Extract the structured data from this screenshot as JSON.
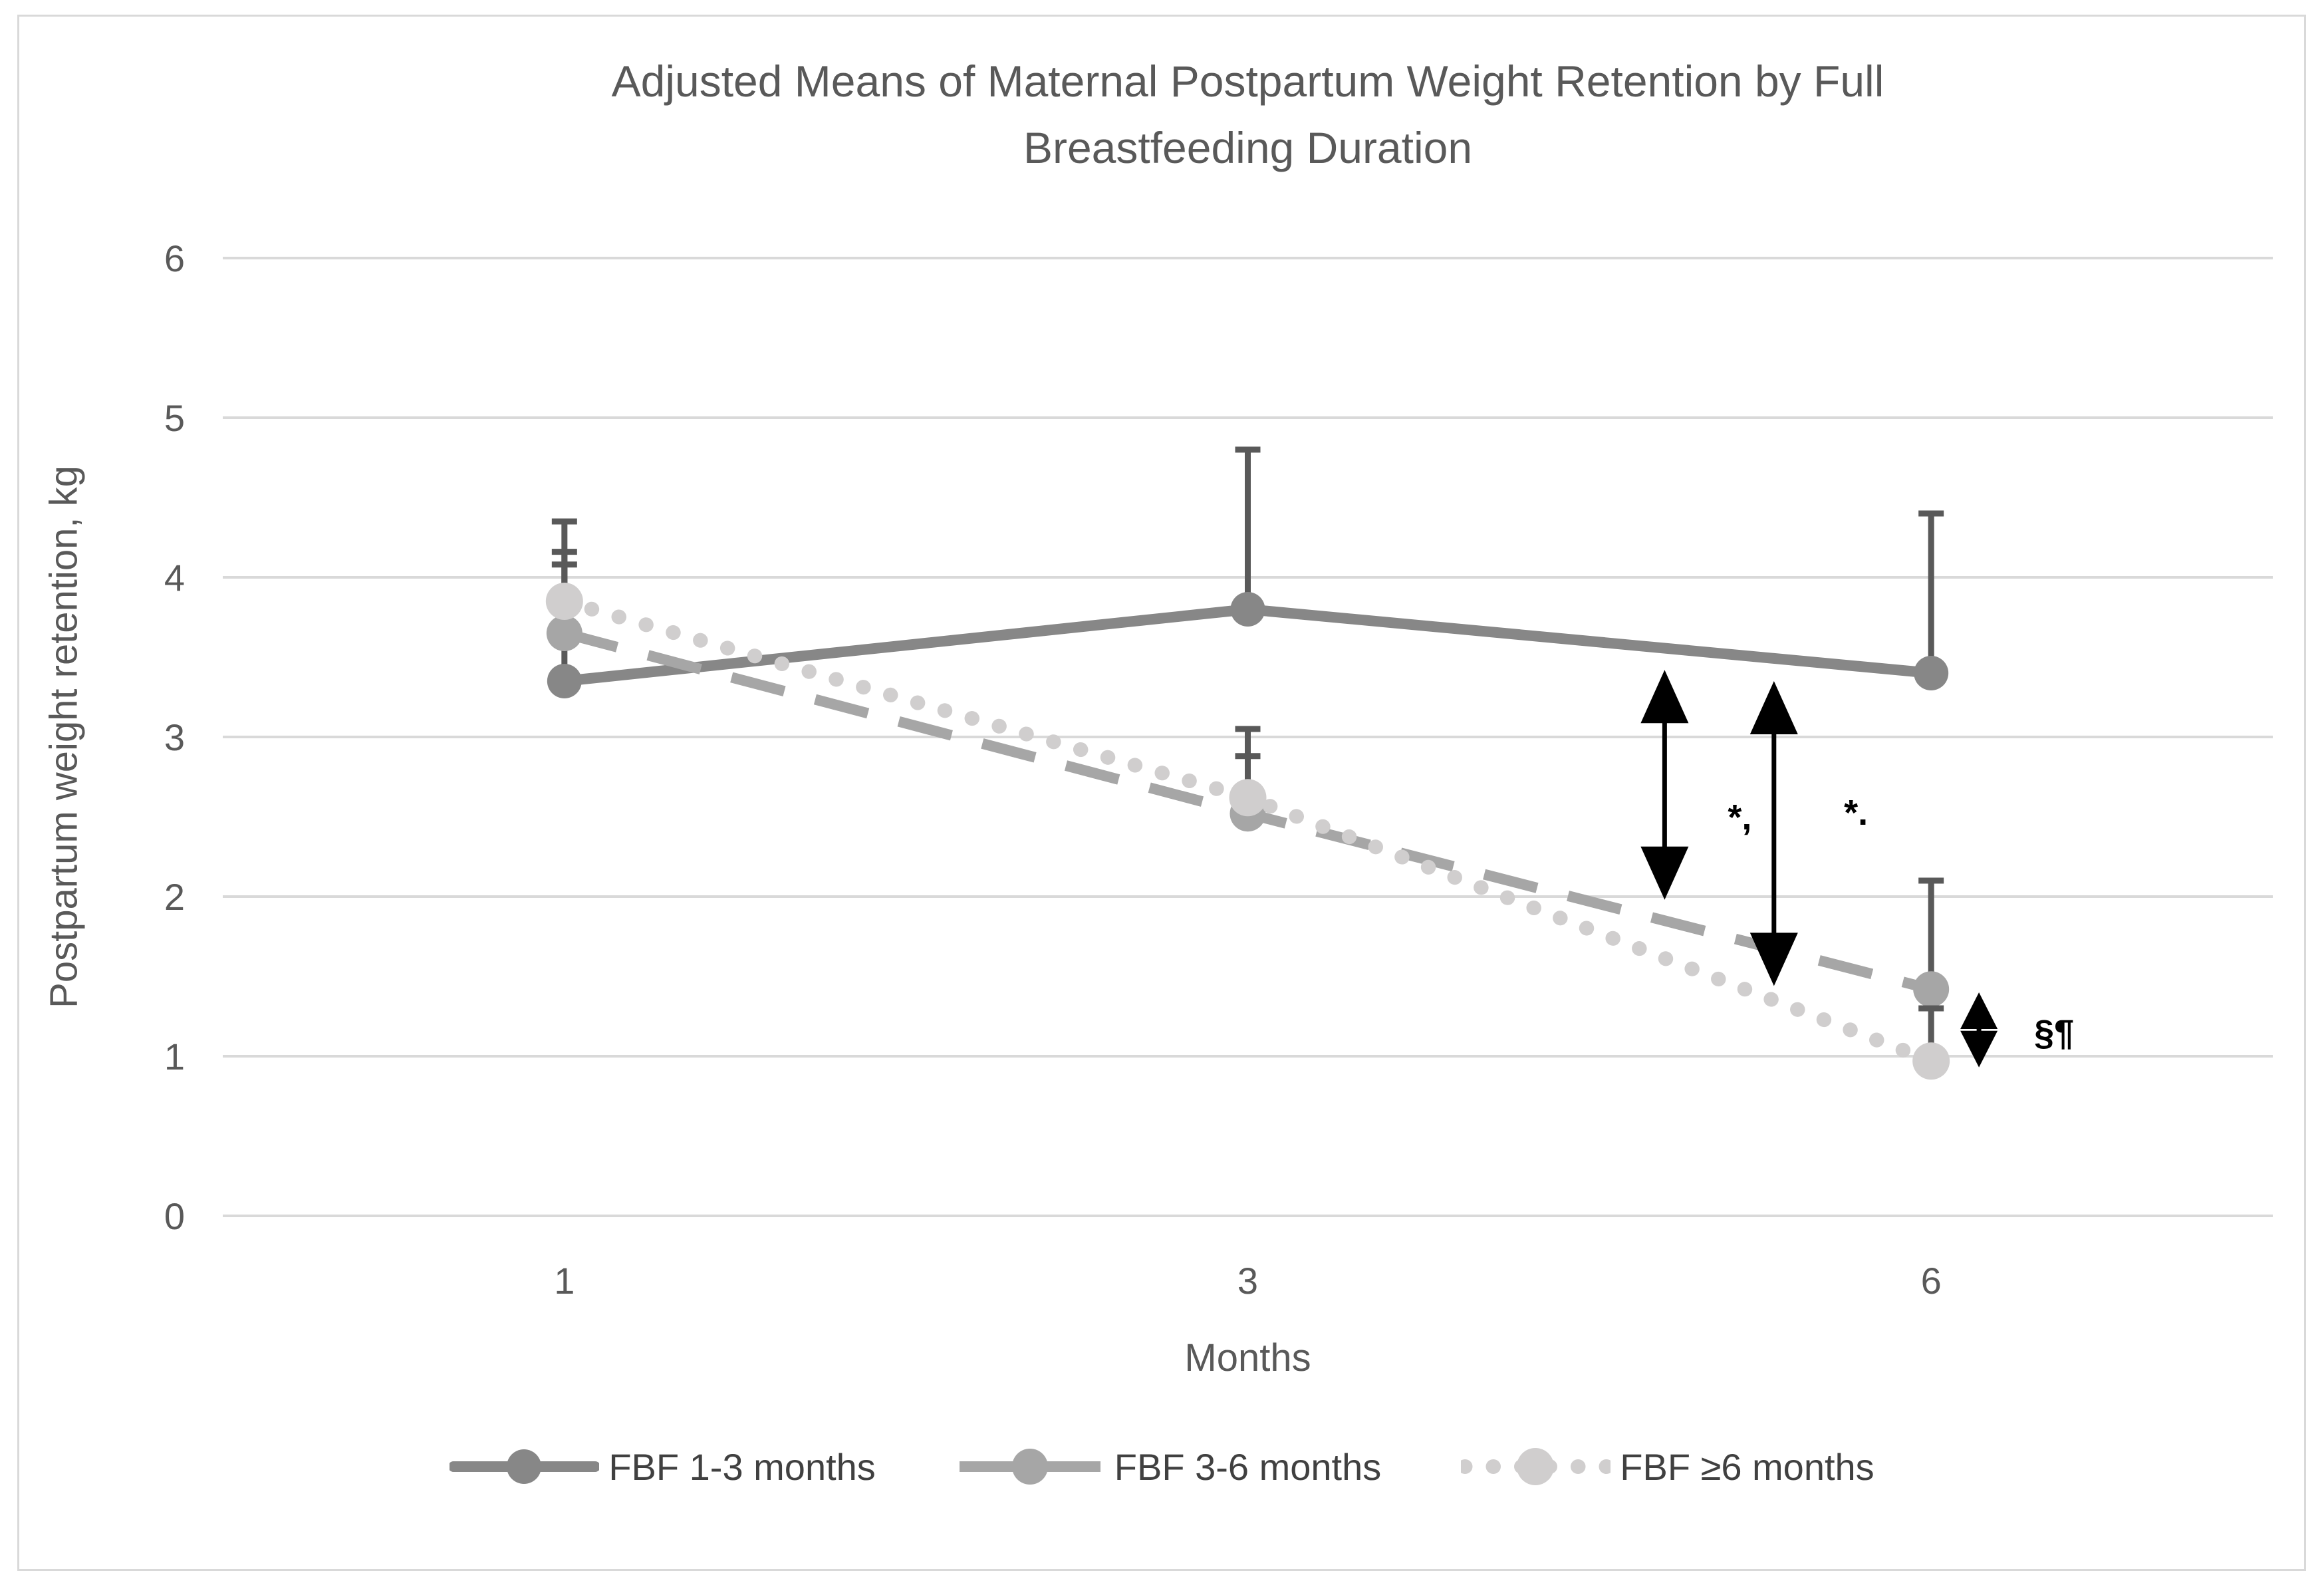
{
  "figure": {
    "title_line1": "Adjusted Means of Maternal Postpartum Weight Retention by Full",
    "title_line2": "Breastfeeding Duration",
    "x_axis_label": "Months",
    "y_axis_label": "Postpartum weight retention, kg"
  },
  "colors": {
    "frame_border": "#d9d9d9",
    "gridline": "#d9d9d9",
    "axis_text": "#595959",
    "error_bar": "#595959",
    "annotation": "#000000"
  },
  "chart_data": {
    "type": "line",
    "title": "Adjusted Means of Maternal Postpartum Weight Retention by Full Breastfeeding Duration",
    "xlabel": "Months",
    "ylabel": "Postpartum weight retention, kg",
    "x_categories": [
      "1",
      "3",
      "6"
    ],
    "yticks": [
      0,
      1,
      2,
      3,
      4,
      5,
      6
    ],
    "ylim": [
      0,
      6
    ],
    "grid": "horizontal",
    "legend_position": "bottom",
    "error_bar_color": "#595959",
    "series": [
      {
        "name": "FBF 1-3 months",
        "style": "solid",
        "color": "#878787",
        "marker": "circle",
        "marker_r": 26,
        "values": [
          3.35,
          3.8,
          3.4
        ],
        "error_upper_top": [
          4.35,
          4.8,
          4.4
        ]
      },
      {
        "name": "FBF 3-6 months",
        "style": "dashed",
        "color": "#a6a6a6",
        "marker": "circle",
        "marker_r": 27,
        "values": [
          3.65,
          2.52,
          1.42
        ],
        "error_upper_top": [
          4.08,
          3.05,
          2.1
        ]
      },
      {
        "name": "FBF ≥6 months",
        "style": "dotted",
        "color": "#d0cece",
        "marker": "circle",
        "marker_r": 28,
        "values": [
          3.85,
          2.62,
          0.97
        ],
        "error_upper_top": [
          4.16,
          2.88,
          1.3
        ]
      }
    ],
    "annotations": [
      {
        "type": "arrow",
        "x": 1.61,
        "y_top": 3.42,
        "y_bottom": 1.98
      },
      {
        "type": "arrow",
        "x": 1.77,
        "y_top": 3.35,
        "y_bottom": 1.44
      },
      {
        "type": "arrow",
        "x": 2.07,
        "y_top": 1.4,
        "y_bottom": 0.93
      },
      {
        "type": "label",
        "x": 1.72,
        "y": 2.5,
        "text": "*,"
      },
      {
        "type": "label",
        "x": 1.89,
        "y": 2.53,
        "text": "*."
      },
      {
        "type": "label",
        "x": 2.18,
        "y": 1.15,
        "text": "§¶"
      }
    ]
  }
}
